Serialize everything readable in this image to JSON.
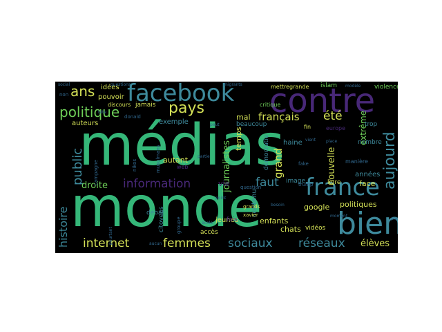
{
  "palette": {
    "teal": "#35b779",
    "blue": "#3e8a9c",
    "purple": "#482878",
    "indigo": "#31688e",
    "yellow": "#d4e157",
    "lightgreen": "#6ece58",
    "dark": "#2a2f5a"
  },
  "words": {
    "medias": "médias",
    "monde": "monde",
    "contre": "contre",
    "facebook": "facebook",
    "bien": "bien",
    "france": "france",
    "aujourd": "aujourd",
    "politique": "politique",
    "pays": "pays",
    "ans": "ans",
    "information": "information",
    "internet": "internet",
    "femmes": "femmes",
    "sociaux": "sociaux",
    "reseaux": "réseaux",
    "eleves": "élèves",
    "histoire": "histoire",
    "public": "public",
    "droite": "droite",
    "francais": "français",
    "ete": "été",
    "grand": "grand",
    "faut": "faut",
    "journalistes": "journalistes",
    "nouvelle": "nouvelle",
    "extreme": "extrême",
    "auteurs": "auteurs",
    "pouvoir": "pouvoir",
    "idees": "idées",
    "exemple": "exemple",
    "autant": "autant",
    "vie": "vie",
    "mal": "mal",
    "temps": "temps",
    "enfants": "enfants",
    "google": "google",
    "politiques": "politiques",
    "chats": "chats",
    "face": "face",
    "annees": "années",
    "contenu": "contenu",
    "jeunes": "jeunes",
    "haine": "haine",
    "videos": "vidéos",
    "violence": "violence",
    "islam": "islam",
    "mettregrande": "mettregrande",
    "nombre": "nombre",
    "democratie": "démocratie",
    "beaucoup": "beaucoup",
    "acces": "accès",
    "fois": "fois",
    "livre": "livre",
    "image": "image",
    "debat": "débat",
    "citoyens": "citoyens",
    "jamais": "jamais",
    "discours": "discours",
    "europe": "europe",
    "critique": "critique",
    "fin": "fin",
    "trop": "trop",
    "web": "web",
    "question": "question",
    "donald": "donald",
    "manière": "manière",
    "trump": "trump",
    "fake": "fake",
    "grands": "grands",
    "xavier": "xavier",
    "questions": "questions",
    "social": "social",
    "non": "non",
    "place": "place",
    "nikos": "nikos",
    "musulmans": "musulmans",
    "campagne": "campagne",
    "modèle": "modèle",
    "vient": "vient",
    "point": "point",
    "partie": "partie",
    "besoin": "besoin",
    "pourtant": "pourtant",
    "aucun": "aucun",
    "tête": "tête",
    "presse": "presse",
    "école": "école",
    "migrants": "migrants",
    "moment": "moment",
    "groupe": "groupe",
    "peut": "peut"
  }
}
